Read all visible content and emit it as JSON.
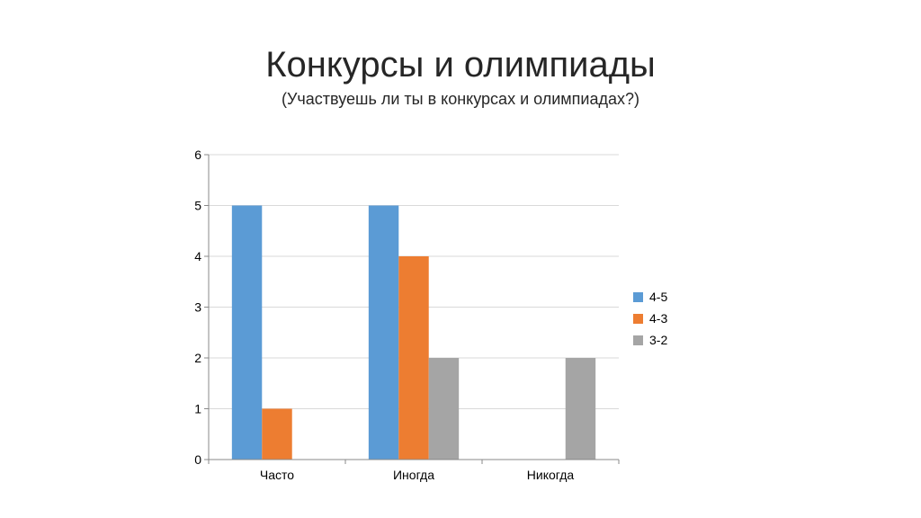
{
  "slide": {
    "title": "Конкурсы и олимпиады",
    "subtitle": "(Участвуешь ли ты в конкурсах и олимпиадах?)"
  },
  "chart_data": {
    "type": "bar",
    "title": "",
    "xlabel": "",
    "ylabel": "",
    "categories": [
      "Часто",
      "Иногда",
      "Никогда"
    ],
    "series": [
      {
        "name": "4-5",
        "color": "#5B9BD5",
        "values": [
          5,
          5,
          0
        ]
      },
      {
        "name": "4-3",
        "color": "#ED7D31",
        "values": [
          1,
          4,
          0
        ]
      },
      {
        "name": "3-2",
        "color": "#A5A5A5",
        "values": [
          0,
          2,
          2
        ]
      }
    ],
    "ylim": [
      0,
      6
    ],
    "yticks": [
      0,
      1,
      2,
      3,
      4,
      5,
      6
    ],
    "grid": true,
    "legend": "right"
  }
}
